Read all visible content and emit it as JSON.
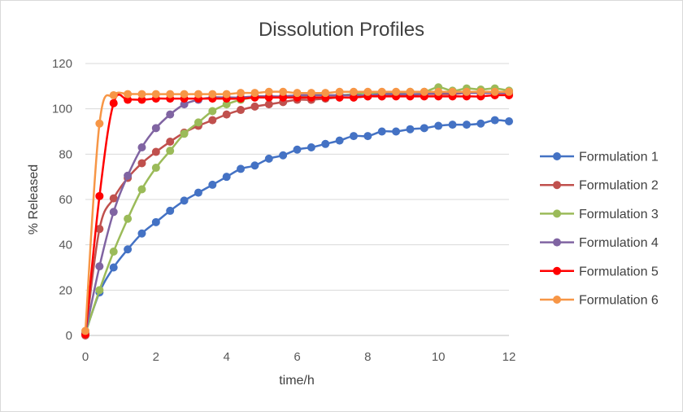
{
  "chart_data": {
    "type": "line",
    "title": "Dissolution Profiles",
    "xlabel": "time/h",
    "ylabel": "% Released",
    "xlim": [
      0,
      12
    ],
    "ylim": [
      0,
      120
    ],
    "xticks": [
      "0",
      "2",
      "4",
      "6",
      "8",
      "10",
      "12"
    ],
    "yticks": [
      "0",
      "20",
      "40",
      "60",
      "80",
      "100",
      "120"
    ],
    "grid": "horizontal",
    "legend": "right",
    "x": [
      0,
      0.4,
      0.8,
      1.2,
      1.6,
      2.0,
      2.4,
      2.8,
      3.2,
      3.6,
      4.0,
      4.4,
      4.8,
      5.2,
      5.6,
      6.0,
      6.4,
      6.8,
      7.2,
      7.6,
      8.0,
      8.4,
      8.8,
      9.2,
      9.6,
      10.0,
      10.4,
      10.8,
      11.2,
      11.6,
      12.0
    ],
    "series": [
      {
        "name": "Formulation 1",
        "color": "#4472c4",
        "values": [
          1,
          19,
          30,
          38,
          45,
          50,
          55,
          59.5,
          63,
          66.5,
          70,
          73.5,
          75,
          78,
          79.5,
          82,
          83,
          84.5,
          86,
          88,
          88,
          90,
          90,
          91,
          91.5,
          92.5,
          93,
          93,
          93.5,
          95,
          94.5
        ]
      },
      {
        "name": "Formulation 2",
        "color": "#c0504d",
        "values": [
          0,
          47,
          60.5,
          69.5,
          76,
          81,
          85.5,
          89.5,
          92.5,
          95,
          97.5,
          99.5,
          101,
          102,
          103,
          104,
          104,
          104.5,
          105,
          105,
          105.5,
          105.5,
          106,
          106,
          106.5,
          106.5,
          106.5,
          107,
          107,
          107,
          107
        ]
      },
      {
        "name": "Formulation 3",
        "color": "#9bbb59",
        "values": [
          1,
          20,
          37,
          51.5,
          64.5,
          74,
          81.5,
          89,
          94,
          99,
          102,
          104,
          105,
          105,
          105.5,
          105.5,
          106,
          106,
          106,
          106.5,
          107,
          107,
          107,
          107.5,
          107.5,
          109.5,
          108,
          109,
          108.5,
          109,
          108
        ]
      },
      {
        "name": "Formulation 4",
        "color": "#8064a2",
        "values": [
          1,
          30.5,
          54.5,
          70.5,
          83,
          91.5,
          97.5,
          102,
          104,
          105,
          105,
          105,
          105.5,
          105.5,
          105.5,
          106,
          106,
          106,
          106,
          106,
          106,
          106.5,
          106.5,
          106.5,
          106.5,
          107,
          107,
          107,
          107,
          107,
          107
        ]
      },
      {
        "name": "Formulation 5",
        "color": "#ff0000",
        "values": [
          0.5,
          61.5,
          102.5,
          104,
          104,
          104.5,
          104.5,
          104.5,
          104.5,
          104.5,
          104.5,
          104.5,
          105,
          105,
          105,
          105,
          105,
          105,
          105,
          105,
          105.5,
          105.5,
          105.5,
          105.5,
          105.5,
          105.5,
          105.5,
          105.5,
          105.5,
          106,
          106
        ]
      },
      {
        "name": "Formulation 6",
        "color": "#f79646",
        "values": [
          2,
          93.5,
          106,
          106.5,
          106.5,
          106.5,
          106.5,
          106.5,
          106.5,
          106.5,
          106.5,
          107,
          107,
          107.5,
          107.5,
          107,
          107,
          107,
          107.5,
          107.5,
          107.5,
          107.5,
          107.5,
          107.5,
          107.5,
          107.5,
          107.5,
          107.5,
          107.5,
          107.5,
          107.5
        ]
      }
    ]
  }
}
